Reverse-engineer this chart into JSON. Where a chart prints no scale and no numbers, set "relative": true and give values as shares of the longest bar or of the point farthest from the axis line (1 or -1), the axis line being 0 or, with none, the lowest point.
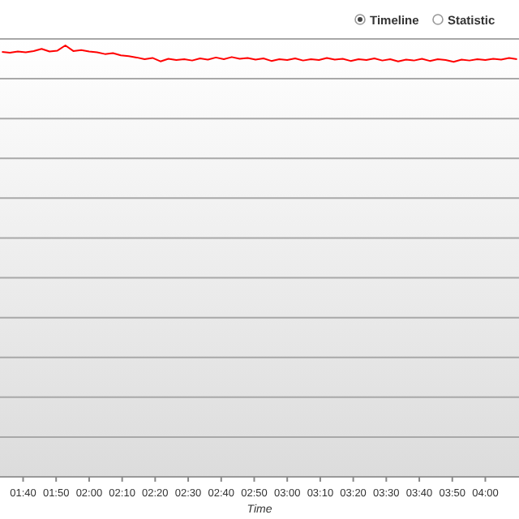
{
  "chart_data": {
    "type": "line",
    "xlabel": "Time",
    "relative": true,
    "grid": true,
    "marker": "none",
    "line_style": "solid",
    "annotations": [
      "Timeline",
      "Statistic"
    ],
    "xlim": [
      1.55,
      4.17
    ],
    "xticks": [
      {
        "value": 1.6667,
        "label": "01:40"
      },
      {
        "value": 1.8333,
        "label": "01:50"
      },
      {
        "value": 2,
        "label": "02:00"
      },
      {
        "value": 2.1667,
        "label": "02:10"
      },
      {
        "value": 2.3333,
        "label": "02:20"
      },
      {
        "value": 2.5,
        "label": "02:30"
      },
      {
        "value": 2.6667,
        "label": "02:40"
      },
      {
        "value": 2.8333,
        "label": "02:50"
      },
      {
        "value": 3,
        "label": "03:00"
      },
      {
        "value": 3.1667,
        "label": "03:10"
      },
      {
        "value": 3.3333,
        "label": "03:20"
      },
      {
        "value": 3.5,
        "label": "03:30"
      },
      {
        "value": 3.6667,
        "label": "03:40"
      },
      {
        "value": 3.8333,
        "label": "03:50"
      },
      {
        "value": 4,
        "label": "04:00"
      }
    ],
    "x": [
      1.56,
      1.6,
      1.64,
      1.68,
      1.72,
      1.76,
      1.8,
      1.84,
      1.88,
      1.92,
      1.96,
      2.0,
      2.04,
      2.08,
      2.12,
      2.16,
      2.2,
      2.24,
      2.28,
      2.32,
      2.36,
      2.4,
      2.44,
      2.48,
      2.52,
      2.56,
      2.6,
      2.64,
      2.68,
      2.72,
      2.76,
      2.8,
      2.84,
      2.88,
      2.92,
      2.96,
      3.0,
      3.04,
      3.08,
      3.12,
      3.16,
      3.2,
      3.24,
      3.28,
      3.32,
      3.36,
      3.4,
      3.44,
      3.48,
      3.52,
      3.56,
      3.6,
      3.64,
      3.68,
      3.72,
      3.76,
      3.8,
      3.84,
      3.88,
      3.92,
      3.96,
      4.0,
      4.04,
      4.08,
      4.12,
      4.16
    ],
    "series": [
      {
        "color": "#ff0000",
        "values": [
          0.985,
          0.983,
          0.986,
          0.984,
          0.987,
          0.992,
          0.986,
          0.988,
          1.0,
          0.987,
          0.989,
          0.986,
          0.984,
          0.98,
          0.982,
          0.977,
          0.975,
          0.972,
          0.968,
          0.971,
          0.963,
          0.969,
          0.966,
          0.968,
          0.965,
          0.97,
          0.967,
          0.972,
          0.968,
          0.973,
          0.969,
          0.971,
          0.967,
          0.97,
          0.964,
          0.968,
          0.966,
          0.97,
          0.965,
          0.968,
          0.966,
          0.971,
          0.967,
          0.969,
          0.964,
          0.968,
          0.966,
          0.97,
          0.965,
          0.968,
          0.963,
          0.967,
          0.965,
          0.969,
          0.964,
          0.968,
          0.966,
          0.962,
          0.967,
          0.965,
          0.968,
          0.966,
          0.969,
          0.967,
          0.971,
          0.968
        ]
      }
    ]
  }
}
